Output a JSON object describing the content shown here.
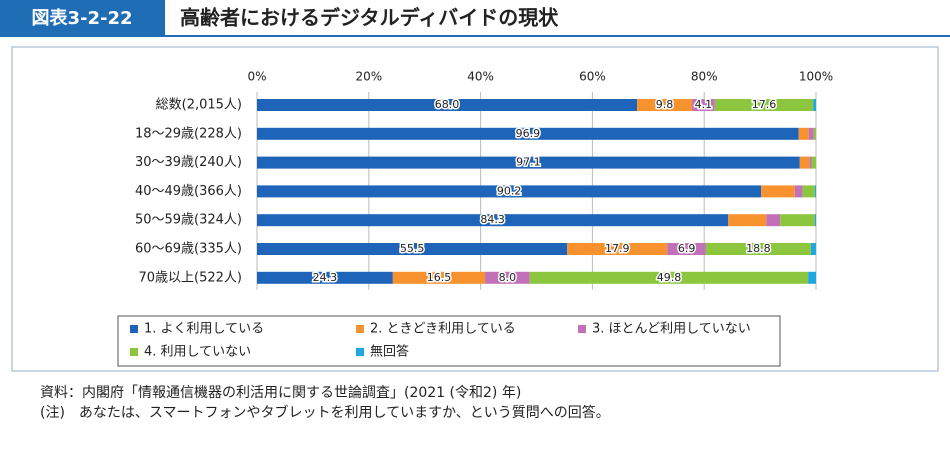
{
  "header": {
    "label": "図表3-2-22",
    "title": "高齢者におけるデジタルディバイドの現状"
  },
  "chart_data": {
    "type": "stacked-hbar",
    "categories": [
      "総数(2,015人)",
      "18～29歳(228人)",
      "30～39歳(240人)",
      "40～49歳(366人)",
      "50～59歳(324人)",
      "60～69歳(335人)",
      "70歳以上(522人)"
    ],
    "series": [
      {
        "name": "1. よく利用している",
        "color": "#1e64b8",
        "values": [
          68.0,
          96.9,
          97.1,
          90.2,
          84.3,
          55.5,
          24.3
        ],
        "value_labels": [
          "68.0",
          "96.9",
          "97.1",
          "90.2",
          "84.3",
          "55.5",
          "24.3"
        ]
      },
      {
        "name": "2. ときどき利用している",
        "color": "#f7922f",
        "values": [
          9.8,
          1.8,
          1.7,
          6.0,
          6.8,
          17.9,
          16.5
        ],
        "value_labels": [
          "9.8",
          null,
          null,
          null,
          null,
          "17.9",
          "16.5"
        ]
      },
      {
        "name": "3. ほとんど利用していない",
        "color": "#c271b8",
        "values": [
          4.1,
          0.9,
          0.4,
          1.4,
          2.5,
          6.9,
          8.0
        ],
        "value_labels": [
          "4.1",
          null,
          null,
          null,
          null,
          "6.9",
          "8.0"
        ]
      },
      {
        "name": "4. 利用していない",
        "color": "#8cc63f",
        "values": [
          17.6,
          0.4,
          0.8,
          2.2,
          6.2,
          18.8,
          49.8
        ],
        "value_labels": [
          "17.6",
          null,
          null,
          null,
          null,
          "18.8",
          "49.8"
        ]
      },
      {
        "name": "無回答",
        "color": "#1ea8e0",
        "values": [
          0.5,
          0,
          0,
          0.2,
          0.2,
          0.9,
          1.4
        ],
        "value_labels": [
          null,
          null,
          null,
          null,
          null,
          null,
          null
        ]
      }
    ],
    "xlim": [
      0,
      100
    ],
    "xticks": [
      {
        "value": 0,
        "label": "0%"
      },
      {
        "value": 20,
        "label": "20%"
      },
      {
        "value": 40,
        "label": "40%"
      },
      {
        "value": 60,
        "label": "60%"
      },
      {
        "value": 80,
        "label": "80%"
      },
      {
        "value": 100,
        "label": "100%"
      }
    ],
    "grid": true
  },
  "notes": [
    "資料：内閣府「情報通信機器の利活用に関する世論調査」(2021 (令和2) 年)",
    "(注)　あなたは、スマートフォンやタブレットを利用していますか、という質問への回答。"
  ]
}
